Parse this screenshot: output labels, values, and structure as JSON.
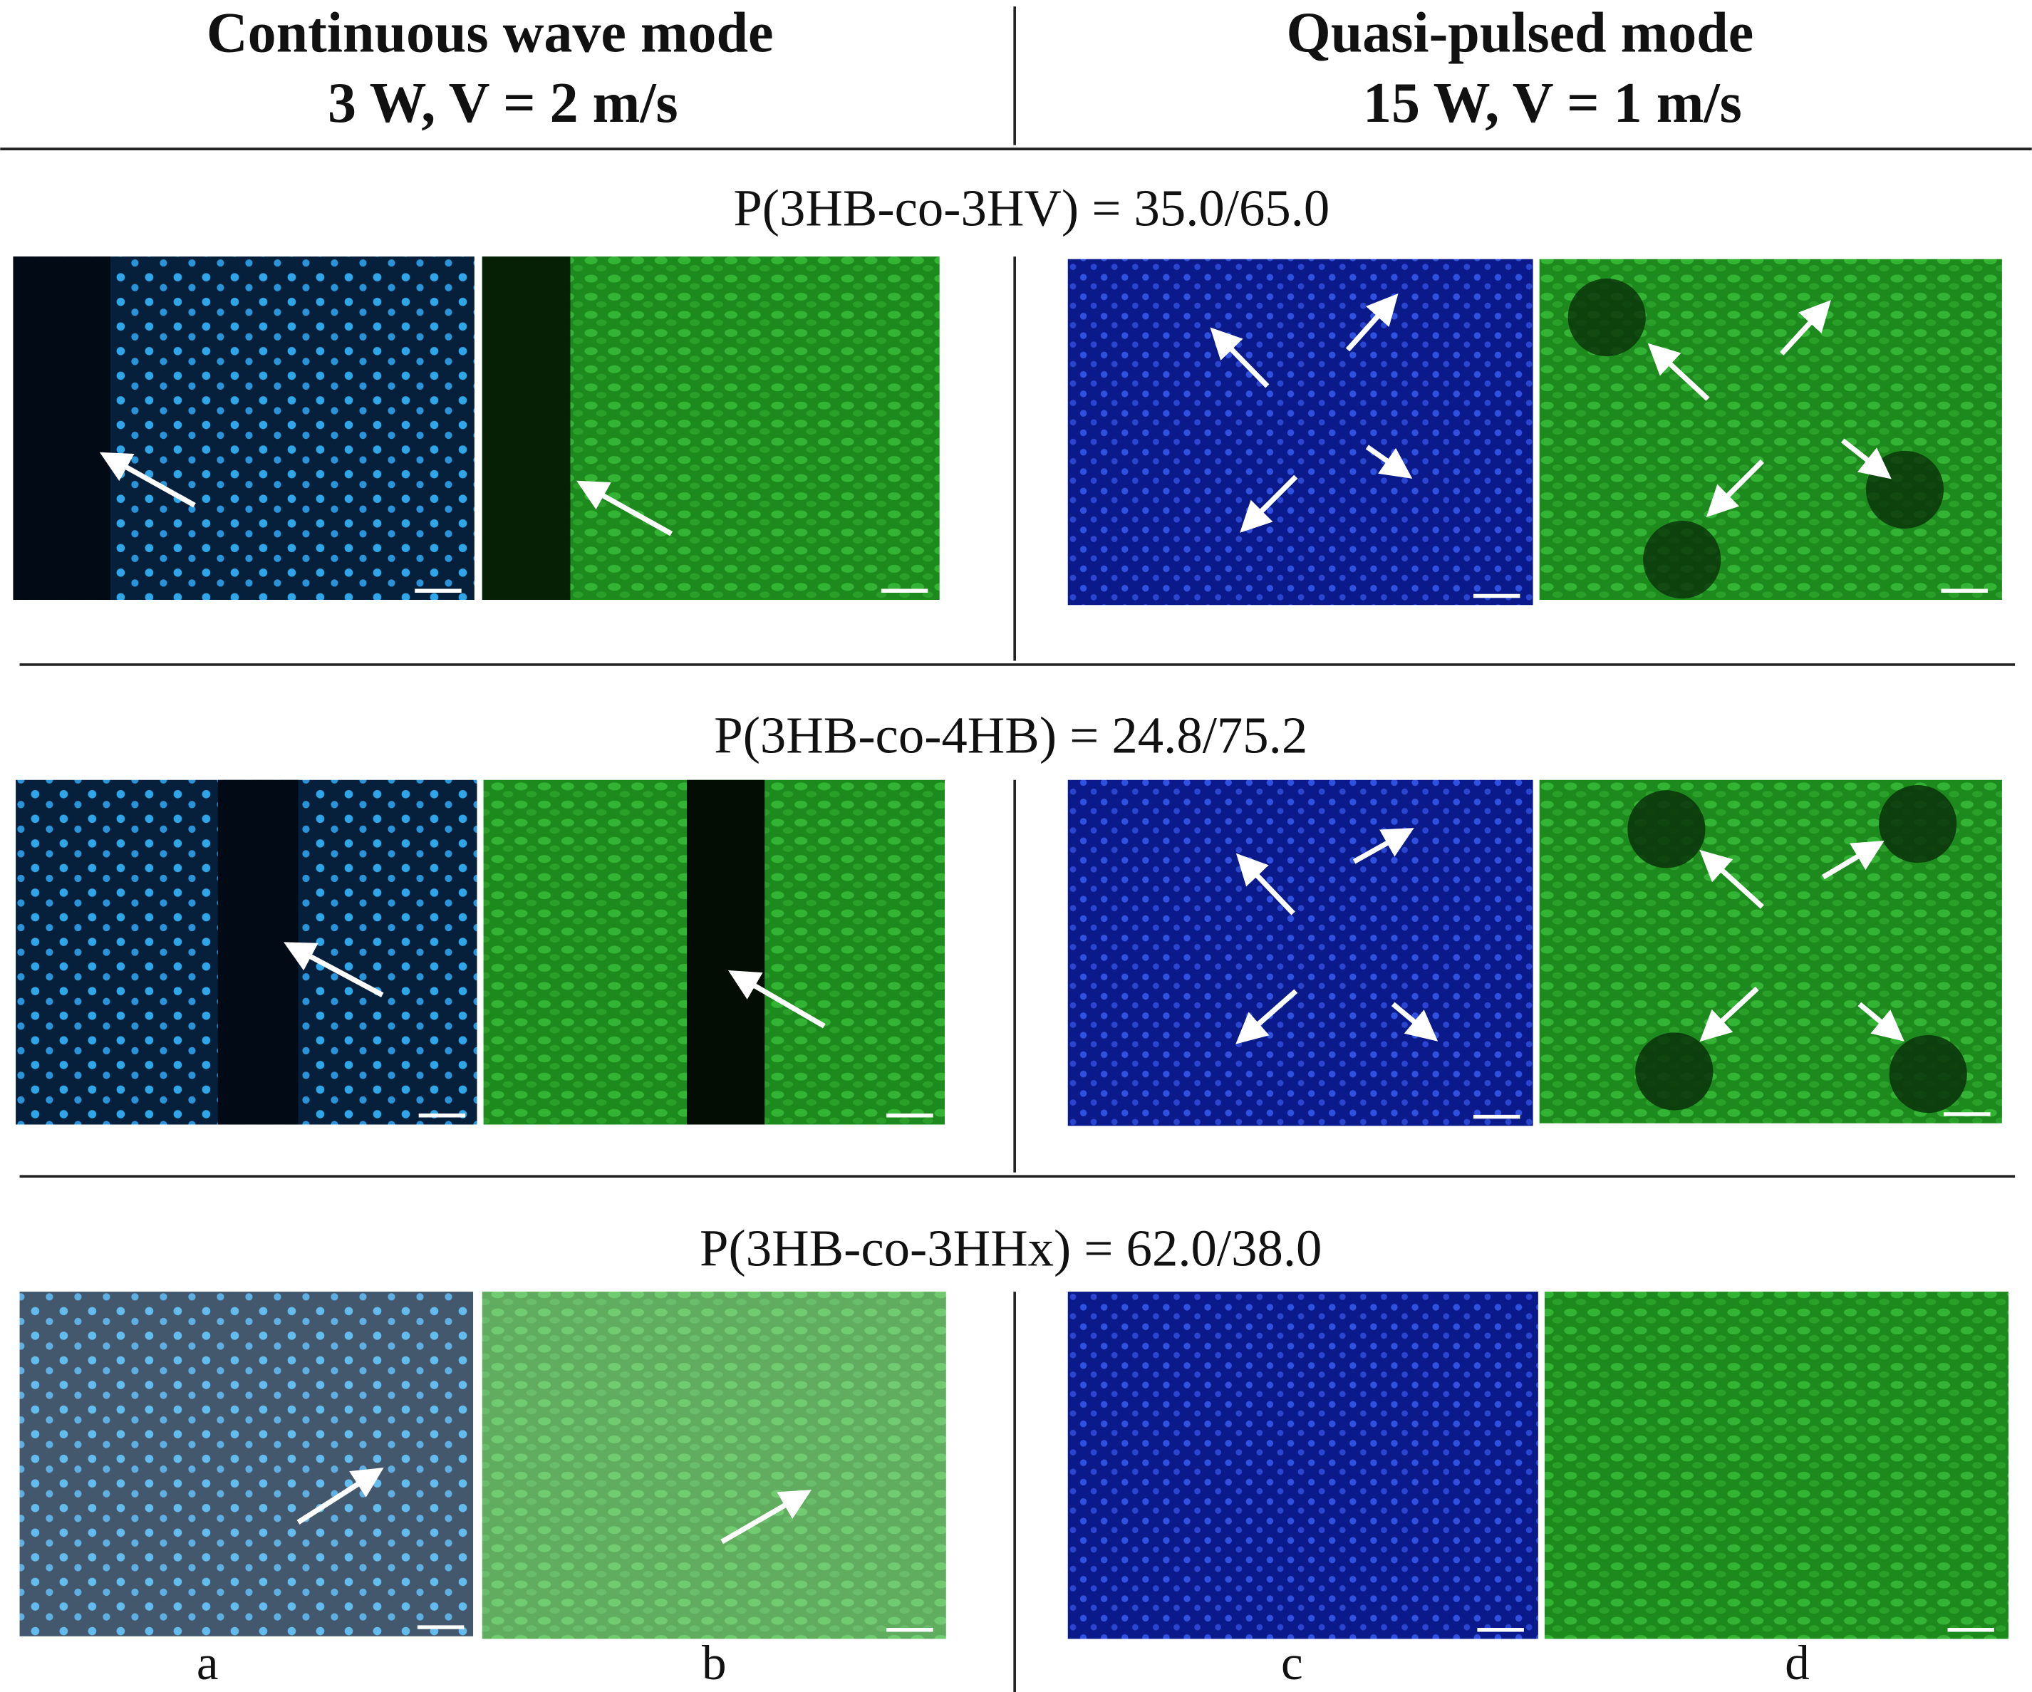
{
  "header": {
    "left": {
      "title": "Continuous wave mode",
      "subtitle": "3 W, V = 2 m/s"
    },
    "right": {
      "title": "Quasi-pulsed mode",
      "subtitle": "15 W, V = 1 m/s"
    }
  },
  "rows": [
    {
      "label": "P(3HB-co-3HV) = 35.0/65.0"
    },
    {
      "label": "P(3HB-co-4HB) = 24.8/75.2"
    },
    {
      "label": "P(3HB-co-3HHx) = 62.0/38.0"
    }
  ],
  "panel_letters": [
    "a",
    "b",
    "c",
    "d"
  ]
}
